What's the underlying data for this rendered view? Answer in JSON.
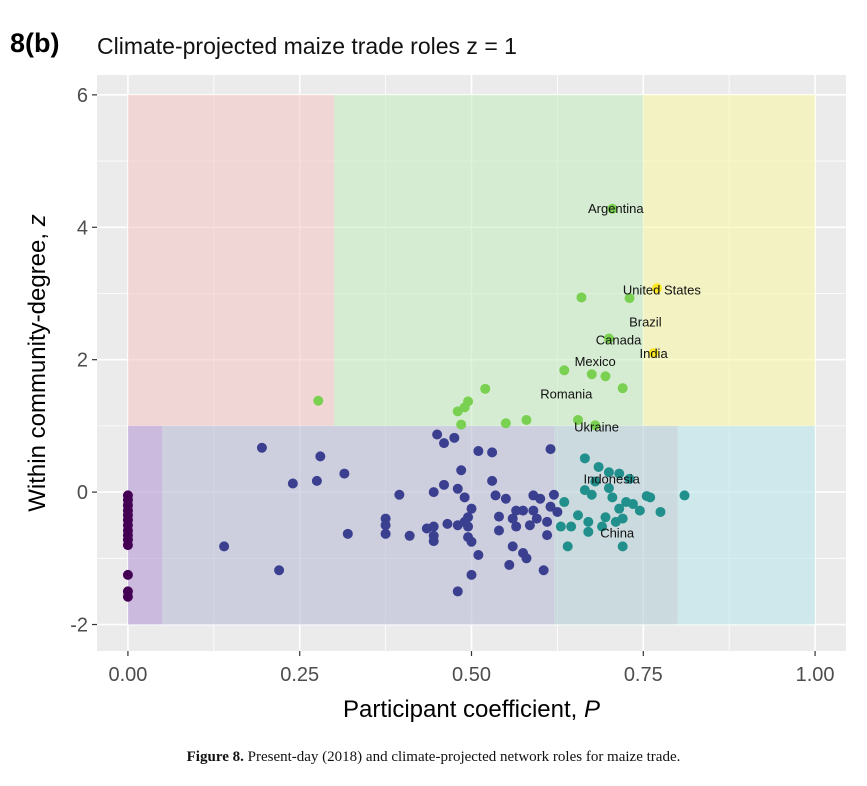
{
  "panel_label": "8(b)",
  "caption": {
    "prefix": "Figure 8.",
    "text": " Present-day (2018) and climate-projected network roles for maize trade."
  },
  "chart_data": {
    "type": "scatter",
    "title": "Climate-projected maize trade roles z = 1",
    "xlabel": "Participant coefficient, ",
    "xlabel_italic": "P",
    "ylabel": "Within community-degree, ",
    "ylabel_italic": "z",
    "xlim": [
      -0.045,
      1.045
    ],
    "ylim": [
      -2.4,
      6.3
    ],
    "xticks": [
      0.0,
      0.25,
      0.5,
      0.75,
      1.0
    ],
    "xtick_labels": [
      "0.00",
      "0.25",
      "0.50",
      "0.75",
      "1.00"
    ],
    "yticks": [
      -2,
      0,
      2,
      4,
      6
    ],
    "ytick_labels": [
      "-2",
      "0",
      "2",
      "4",
      "6"
    ],
    "grid": true,
    "legend": "none",
    "colors": {
      "panel_bg": "#ebebeb",
      "grid": "#ffffff",
      "dark_purple": "#440154",
      "navy": "#3b3f8f",
      "teal": "#21908c",
      "green": "#7ad151",
      "yellow": "#fde725"
    },
    "regions": [
      {
        "x": [
          0.0,
          0.3
        ],
        "y": [
          1,
          6
        ],
        "color": "#f4c9c6"
      },
      {
        "x": [
          0.3,
          0.75
        ],
        "y": [
          1,
          6
        ],
        "color": "#c6ecc2"
      },
      {
        "x": [
          0.75,
          1.0
        ],
        "y": [
          1,
          6
        ],
        "color": "#f9f7a6"
      },
      {
        "x": [
          0.0,
          0.05
        ],
        "y": [
          -2,
          1
        ],
        "color": "#b89ad6"
      },
      {
        "x": [
          0.05,
          0.62
        ],
        "y": [
          -2,
          1
        ],
        "color": "#b9bad6"
      },
      {
        "x": [
          0.62,
          0.8
        ],
        "y": [
          -2,
          1
        ],
        "color": "#b5ced6"
      },
      {
        "x": [
          0.8,
          1.0
        ],
        "y": [
          -2,
          1
        ],
        "color": "#bde6ec"
      }
    ],
    "labels": [
      {
        "text": "Argentina",
        "x": 0.71,
        "y": 4.28
      },
      {
        "text": "United States",
        "x": 0.777,
        "y": 3.05
      },
      {
        "text": "Brazil",
        "x": 0.753,
        "y": 2.57
      },
      {
        "text": "Canada",
        "x": 0.714,
        "y": 2.3
      },
      {
        "text": "India",
        "x": 0.765,
        "y": 2.09
      },
      {
        "text": "Mexico",
        "x": 0.68,
        "y": 1.97
      },
      {
        "text": "Romania",
        "x": 0.638,
        "y": 1.48
      },
      {
        "text": "Ukraine",
        "x": 0.682,
        "y": 0.98
      },
      {
        "text": "Indonesia",
        "x": 0.704,
        "y": 0.2
      },
      {
        "text": "China",
        "x": 0.712,
        "y": -0.62
      }
    ],
    "series": [
      {
        "role": "purple",
        "color": "#440154",
        "points": [
          [
            0,
            -0.05
          ],
          [
            0,
            -0.12
          ],
          [
            0,
            -0.2
          ],
          [
            0,
            -0.28
          ],
          [
            0,
            -0.35
          ],
          [
            0,
            -0.42
          ],
          [
            0,
            -0.5
          ],
          [
            0,
            -0.58
          ],
          [
            0,
            -0.65
          ],
          [
            0,
            -0.72
          ],
          [
            0,
            -0.8
          ],
          [
            0,
            -1.25
          ],
          [
            0,
            -1.5
          ],
          [
            0,
            -1.58
          ]
        ]
      },
      {
        "role": "navy",
        "color": "#3b3f8f",
        "points": [
          [
            0.14,
            -0.82
          ],
          [
            0.195,
            0.67
          ],
          [
            0.22,
            -1.18
          ],
          [
            0.24,
            0.13
          ],
          [
            0.275,
            0.17
          ],
          [
            0.28,
            0.54
          ],
          [
            0.315,
            0.28
          ],
          [
            0.32,
            -0.63
          ],
          [
            0.375,
            -0.4
          ],
          [
            0.375,
            -0.5
          ],
          [
            0.375,
            -0.63
          ],
          [
            0.395,
            -0.04
          ],
          [
            0.41,
            -0.66
          ],
          [
            0.435,
            -0.55
          ],
          [
            0.445,
            -0.52
          ],
          [
            0.445,
            -0.66
          ],
          [
            0.445,
            -0.74
          ],
          [
            0.445,
            0.0
          ],
          [
            0.45,
            0.87
          ],
          [
            0.46,
            0.74
          ],
          [
            0.46,
            0.11
          ],
          [
            0.465,
            -0.48
          ],
          [
            0.475,
            0.82
          ],
          [
            0.48,
            -0.5
          ],
          [
            0.48,
            -1.5
          ],
          [
            0.48,
            0.05
          ],
          [
            0.485,
            0.33
          ],
          [
            0.49,
            -0.45
          ],
          [
            0.49,
            -0.08
          ],
          [
            0.495,
            -0.38
          ],
          [
            0.495,
            -0.52
          ],
          [
            0.495,
            -0.68
          ],
          [
            0.5,
            -0.75
          ],
          [
            0.5,
            -1.25
          ],
          [
            0.5,
            -0.25
          ],
          [
            0.51,
            0.62
          ],
          [
            0.51,
            -0.95
          ],
          [
            0.53,
            0.6
          ],
          [
            0.53,
            0.17
          ],
          [
            0.535,
            -0.05
          ],
          [
            0.54,
            -0.37
          ],
          [
            0.54,
            -0.58
          ],
          [
            0.55,
            -0.1
          ],
          [
            0.555,
            -1.1
          ],
          [
            0.56,
            -0.4
          ],
          [
            0.56,
            -0.82
          ],
          [
            0.565,
            -0.28
          ],
          [
            0.565,
            -0.52
          ],
          [
            0.575,
            -0.92
          ],
          [
            0.575,
            -0.28
          ],
          [
            0.58,
            -1.0
          ],
          [
            0.585,
            -0.5
          ],
          [
            0.59,
            -0.05
          ],
          [
            0.59,
            -0.28
          ],
          [
            0.595,
            -0.4
          ],
          [
            0.6,
            -0.1
          ],
          [
            0.605,
            -1.18
          ],
          [
            0.61,
            -0.45
          ],
          [
            0.61,
            -0.65
          ],
          [
            0.615,
            -0.22
          ],
          [
            0.615,
            0.65
          ],
          [
            0.62,
            -0.04
          ],
          [
            0.625,
            -0.3
          ]
        ]
      },
      {
        "role": "teal",
        "color": "#21908c",
        "points": [
          [
            0.63,
            -0.52
          ],
          [
            0.635,
            -0.15
          ],
          [
            0.64,
            -0.82
          ],
          [
            0.645,
            -0.52
          ],
          [
            0.655,
            -0.35
          ],
          [
            0.665,
            0.51
          ],
          [
            0.665,
            0.03
          ],
          [
            0.67,
            -0.45
          ],
          [
            0.67,
            -0.6
          ],
          [
            0.675,
            -0.04
          ],
          [
            0.68,
            0.16
          ],
          [
            0.685,
            0.38
          ],
          [
            0.69,
            -0.52
          ],
          [
            0.695,
            -0.38
          ],
          [
            0.7,
            0.3
          ],
          [
            0.7,
            0.06
          ],
          [
            0.705,
            -0.08
          ],
          [
            0.71,
            -0.45
          ],
          [
            0.715,
            0.28
          ],
          [
            0.715,
            -0.25
          ],
          [
            0.72,
            -0.82
          ],
          [
            0.72,
            -0.4
          ],
          [
            0.725,
            -0.15
          ],
          [
            0.73,
            0.2
          ],
          [
            0.735,
            -0.18
          ],
          [
            0.745,
            -0.28
          ],
          [
            0.755,
            -0.06
          ],
          [
            0.76,
            -0.08
          ],
          [
            0.775,
            -0.3
          ],
          [
            0.81,
            -0.05
          ]
        ]
      },
      {
        "role": "green",
        "color": "#7ad151",
        "points": [
          [
            0.277,
            1.38
          ],
          [
            0.48,
            1.22
          ],
          [
            0.485,
            1.02
          ],
          [
            0.49,
            1.28
          ],
          [
            0.495,
            1.37
          ],
          [
            0.52,
            1.56
          ],
          [
            0.55,
            1.04
          ],
          [
            0.58,
            1.09
          ],
          [
            0.635,
            1.84
          ],
          [
            0.655,
            1.09
          ],
          [
            0.66,
            2.94
          ],
          [
            0.675,
            1.78
          ],
          [
            0.68,
            1.01
          ],
          [
            0.695,
            1.75
          ],
          [
            0.7,
            2.32
          ],
          [
            0.705,
            4.28
          ],
          [
            0.72,
            1.57
          ],
          [
            0.73,
            2.93
          ]
        ]
      },
      {
        "role": "yellow",
        "color": "#fde725",
        "points": [
          [
            0.765,
            2.1
          ],
          [
            0.77,
            3.08
          ]
        ]
      }
    ]
  }
}
